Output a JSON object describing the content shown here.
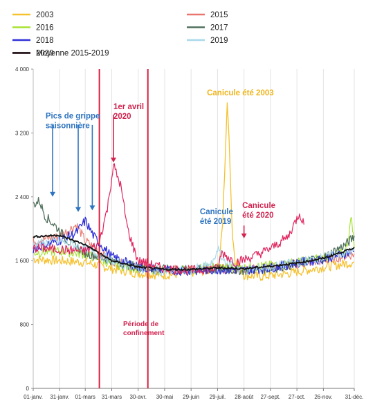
{
  "chart_data": {
    "type": "line",
    "title": "",
    "xlabel": "",
    "ylabel": "",
    "ylim": [
      0,
      4000
    ],
    "yticks": [
      0,
      800,
      1600,
      2400,
      3200,
      4000
    ],
    "ytick_labels": [
      "0",
      "800",
      "1 600",
      "2 400",
      "3 200",
      "4 000"
    ],
    "xticks": [
      {
        "day": 1,
        "label": "01-janv."
      },
      {
        "day": 31,
        "label": "31-janv."
      },
      {
        "day": 60,
        "label": "01-mars"
      },
      {
        "day": 90,
        "label": "31-mars"
      },
      {
        "day": 120,
        "label": "30-avr."
      },
      {
        "day": 150,
        "label": "30-mai"
      },
      {
        "day": 180,
        "label": "29-juin"
      },
      {
        "day": 210,
        "label": "29-juil."
      },
      {
        "day": 240,
        "label": "28-août"
      },
      {
        "day": 270,
        "label": "27-sept."
      },
      {
        "day": 300,
        "label": "27-oct."
      },
      {
        "day": 330,
        "label": "26-nov."
      },
      {
        "day": 365,
        "label": "31-déc."
      }
    ],
    "grid": "vertical",
    "legend_position": "top",
    "series": [
      {
        "name": "2003",
        "color": "#f5c12e",
        "width": 1.3,
        "points": [
          [
            1,
            1620
          ],
          [
            30,
            1600
          ],
          [
            60,
            1580
          ],
          [
            90,
            1500
          ],
          [
            120,
            1440
          ],
          [
            150,
            1420
          ],
          [
            180,
            1450
          ],
          [
            200,
            1480
          ],
          [
            212,
            1560
          ],
          [
            216,
            2100
          ],
          [
            218,
            2700
          ],
          [
            220,
            3300
          ],
          [
            221,
            3530
          ],
          [
            223,
            3200
          ],
          [
            225,
            2500
          ],
          [
            227,
            1900
          ],
          [
            230,
            1620
          ],
          [
            240,
            1420
          ],
          [
            260,
            1400
          ],
          [
            290,
            1440
          ],
          [
            320,
            1500
          ],
          [
            365,
            1580
          ]
        ]
      },
      {
        "name": "2015",
        "color": "#e8766e",
        "width": 1.1,
        "points": [
          [
            1,
            1850
          ],
          [
            30,
            1900
          ],
          [
            50,
            2050
          ],
          [
            60,
            1850
          ],
          [
            90,
            1600
          ],
          [
            120,
            1500
          ],
          [
            150,
            1480
          ],
          [
            180,
            1490
          ],
          [
            210,
            1500
          ],
          [
            240,
            1490
          ],
          [
            270,
            1520
          ],
          [
            300,
            1560
          ],
          [
            330,
            1600
          ],
          [
            365,
            1680
          ]
        ]
      },
      {
        "name": "2016",
        "color": "#a6e22e",
        "width": 1.1,
        "points": [
          [
            1,
            1700
          ],
          [
            30,
            1720
          ],
          [
            60,
            1680
          ],
          [
            90,
            1560
          ],
          [
            120,
            1500
          ],
          [
            150,
            1480
          ],
          [
            180,
            1490
          ],
          [
            210,
            1520
          ],
          [
            240,
            1510
          ],
          [
            270,
            1540
          ],
          [
            300,
            1580
          ],
          [
            330,
            1640
          ],
          [
            355,
            1700
          ],
          [
            362,
            2150
          ],
          [
            365,
            1780
          ]
        ]
      },
      {
        "name": "2017",
        "color": "#4f6f5c",
        "width": 1.3,
        "points": [
          [
            1,
            2300
          ],
          [
            8,
            2350
          ],
          [
            15,
            2150
          ],
          [
            25,
            2050
          ],
          [
            40,
            1850
          ],
          [
            60,
            1700
          ],
          [
            90,
            1600
          ],
          [
            120,
            1520
          ],
          [
            150,
            1490
          ],
          [
            180,
            1480
          ],
          [
            210,
            1490
          ],
          [
            240,
            1480
          ],
          [
            270,
            1500
          ],
          [
            300,
            1560
          ],
          [
            330,
            1640
          ],
          [
            355,
            1800
          ],
          [
            365,
            1900
          ]
        ]
      },
      {
        "name": "2018",
        "color": "#2f2fd8",
        "width": 1.3,
        "points": [
          [
            1,
            1750
          ],
          [
            30,
            1850
          ],
          [
            50,
            1950
          ],
          [
            60,
            2100
          ],
          [
            70,
            1900
          ],
          [
            90,
            1650
          ],
          [
            120,
            1520
          ],
          [
            150,
            1480
          ],
          [
            180,
            1470
          ],
          [
            210,
            1490
          ],
          [
            240,
            1480
          ],
          [
            270,
            1510
          ],
          [
            300,
            1570
          ],
          [
            330,
            1620
          ],
          [
            365,
            1720
          ]
        ]
      },
      {
        "name": "2019",
        "color": "#a8d8ea",
        "width": 1.1,
        "points": [
          [
            1,
            1800
          ],
          [
            30,
            1850
          ],
          [
            60,
            1750
          ],
          [
            90,
            1600
          ],
          [
            120,
            1500
          ],
          [
            150,
            1470
          ],
          [
            180,
            1480
          ],
          [
            205,
            1560
          ],
          [
            210,
            1760
          ],
          [
            215,
            1620
          ],
          [
            240,
            1480
          ],
          [
            270,
            1520
          ],
          [
            300,
            1580
          ],
          [
            330,
            1640
          ],
          [
            365,
            1720
          ]
        ]
      },
      {
        "name": "2020",
        "color": "#e0245e",
        "width": 1.2,
        "points": [
          [
            1,
            1760
          ],
          [
            30,
            1740
          ],
          [
            60,
            1720
          ],
          [
            75,
            1800
          ],
          [
            85,
            2250
          ],
          [
            92,
            2800
          ],
          [
            95,
            2700
          ],
          [
            100,
            2550
          ],
          [
            108,
            2000
          ],
          [
            115,
            1750
          ],
          [
            120,
            1600
          ],
          [
            150,
            1500
          ],
          [
            180,
            1480
          ],
          [
            210,
            1500
          ],
          [
            215,
            1700
          ],
          [
            230,
            1580
          ],
          [
            250,
            1650
          ],
          [
            270,
            1750
          ],
          [
            290,
            1900
          ],
          [
            303,
            2200
          ],
          [
            308,
            2050
          ]
        ]
      },
      {
        "name": "Moyenne 2015-2019",
        "color": "#111111",
        "width": 1.8,
        "points": [
          [
            1,
            1900
          ],
          [
            30,
            1920
          ],
          [
            60,
            1800
          ],
          [
            90,
            1600
          ],
          [
            120,
            1520
          ],
          [
            150,
            1490
          ],
          [
            180,
            1490
          ],
          [
            210,
            1510
          ],
          [
            240,
            1500
          ],
          [
            270,
            1530
          ],
          [
            300,
            1570
          ],
          [
            330,
            1630
          ],
          [
            365,
            1760
          ]
        ]
      }
    ],
    "vlines": [
      {
        "day": 76,
        "color": "#d71f3f"
      },
      {
        "day": 131,
        "color": "#d71f3f"
      }
    ],
    "annotations": [
      {
        "lines": [
          "Pics de grippe",
          "saisonnière"
        ],
        "color": "#2e74c0",
        "day": 15,
        "y": 3380
      },
      {
        "lines": [
          "1er avril",
          "2020"
        ],
        "color": "#d1244f",
        "day": 92,
        "y": 3500
      },
      {
        "lines": [
          "Canicule été 2003"
        ],
        "color": "#f0b419",
        "day": 198,
        "y": 3670
      },
      {
        "lines": [
          "Canicule",
          "été 2019"
        ],
        "color": "#2e74c0",
        "day": 190,
        "y": 2180
      },
      {
        "lines": [
          "Canicule",
          "été 2020"
        ],
        "color": "#d1244f",
        "day": 238,
        "y": 2260
      },
      {
        "lines": [
          "Période de",
          "confinement"
        ],
        "color": "#d1244f",
        "day": 103,
        "y": 780
      }
    ],
    "arrows": [
      {
        "color": "#2e74c0",
        "day": 23,
        "y1": 3300,
        "y2": 2400
      },
      {
        "color": "#2e74c0",
        "day": 52,
        "y1": 3300,
        "y2": 2210
      },
      {
        "color": "#2e74c0",
        "day": 68,
        "y1": 3300,
        "y2": 2230
      },
      {
        "color": "#d1244f",
        "day": 92,
        "y1": 3430,
        "y2": 2830
      },
      {
        "color": "#d1244f",
        "day": 240,
        "y1": 2040,
        "y2": 1880
      }
    ]
  }
}
